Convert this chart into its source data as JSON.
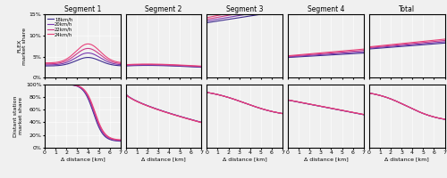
{
  "columns": [
    "Segment 1",
    "Segment 2",
    "Segment 3",
    "Segment 4",
    "Total"
  ],
  "speeds": [
    18,
    20,
    22,
    24
  ],
  "speed_colors": [
    "#3d2b8e",
    "#7b3ab0",
    "#cc3a88",
    "#e8417a"
  ],
  "x_max": 7,
  "flex_ylim": [
    0,
    0.15
  ],
  "dist_ylim": [
    0,
    1.0
  ],
  "flex_yticks": [
    0,
    0.05,
    0.1,
    0.15
  ],
  "dist_yticks": [
    0,
    0.2,
    0.4,
    0.6,
    0.8,
    1.0
  ],
  "flex_ylabel": "FLEX\nmarket share",
  "dist_ylabel": "Distant station\nmarket share",
  "xlabel": "Δ distance [km]",
  "legend_labels": [
    "18km/h",
    "20km/h",
    "22km/h",
    "24km/h"
  ],
  "background_color": "#f0f0f0"
}
